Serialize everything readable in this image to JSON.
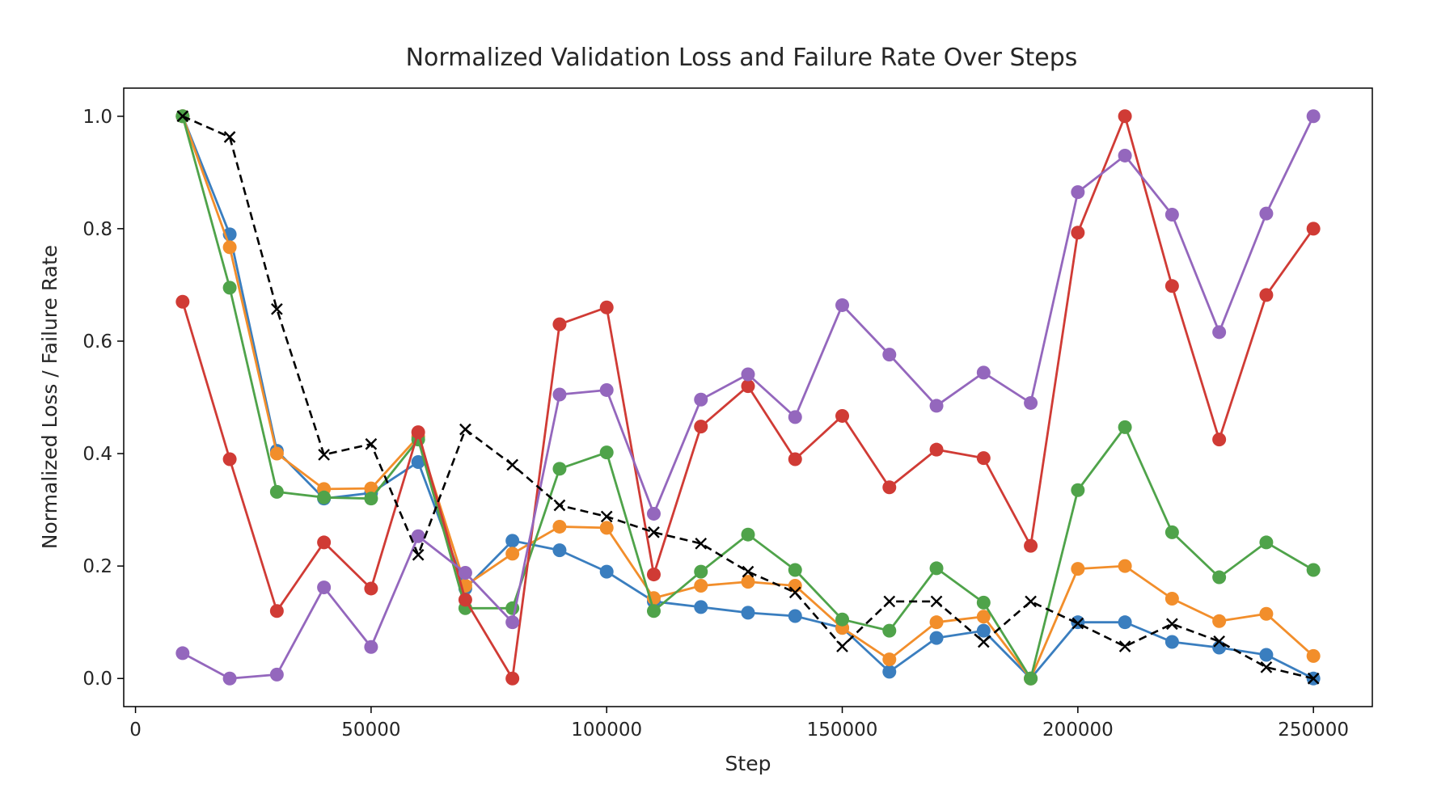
{
  "chart_data": {
    "type": "line",
    "title": "Normalized Validation Loss and Failure Rate Over Steps",
    "xlabel": "Step",
    "ylabel": "Normalized Loss / Failure Rate",
    "xlim": [
      -2500,
      262500
    ],
    "ylim": [
      -0.05,
      1.05
    ],
    "xticks": [
      0,
      50000,
      100000,
      150000,
      200000,
      250000
    ],
    "xtick_labels": [
      "0",
      "50000",
      "100000",
      "150000",
      "200000",
      "250000"
    ],
    "yticks": [
      0.0,
      0.2,
      0.4,
      0.6,
      0.8,
      1.0
    ],
    "ytick_labels": [
      "0.0",
      "0.2",
      "0.4",
      "0.6",
      "0.8",
      "1.0"
    ],
    "grid": false,
    "x": [
      10000,
      20000,
      30000,
      40000,
      50000,
      60000,
      70000,
      80000,
      90000,
      100000,
      110000,
      120000,
      130000,
      140000,
      150000,
      160000,
      170000,
      180000,
      190000,
      200000,
      210000,
      220000,
      230000,
      240000,
      250000
    ],
    "series": [
      {
        "color": "#3a7ebf",
        "style": "solid",
        "marker": "circle",
        "values": [
          1.0,
          0.79,
          0.405,
          0.32,
          0.33,
          0.385,
          0.16,
          0.245,
          0.228,
          0.19,
          0.137,
          0.127,
          0.117,
          0.111,
          0.09,
          0.012,
          0.072,
          0.085,
          0.0,
          0.1,
          0.1,
          0.065,
          0.055,
          0.042,
          0.0
        ]
      },
      {
        "color": "#f28e2b",
        "style": "solid",
        "marker": "circle",
        "values": [
          1.0,
          0.767,
          0.4,
          0.337,
          0.338,
          0.43,
          0.165,
          0.222,
          0.27,
          0.268,
          0.143,
          0.165,
          0.172,
          0.165,
          0.09,
          0.034,
          0.1,
          0.11,
          0.0,
          0.195,
          0.2,
          0.142,
          0.102,
          0.115,
          0.04
        ]
      },
      {
        "color": "#4fa34a",
        "style": "solid",
        "marker": "circle",
        "values": [
          1.0,
          0.695,
          0.332,
          0.322,
          0.32,
          0.425,
          0.125,
          0.125,
          0.373,
          0.402,
          0.12,
          0.19,
          0.256,
          0.193,
          0.105,
          0.085,
          0.196,
          0.135,
          0.0,
          0.335,
          0.447,
          0.26,
          0.18,
          0.242,
          0.193
        ]
      },
      {
        "color": "#d03b35",
        "style": "solid",
        "marker": "circle",
        "values": [
          0.67,
          0.39,
          0.12,
          0.242,
          0.16,
          0.438,
          0.14,
          0.0,
          0.63,
          0.66,
          0.185,
          0.448,
          0.52,
          0.39,
          0.467,
          0.34,
          0.407,
          0.392,
          0.236,
          0.793,
          1.0,
          0.698,
          0.425,
          0.682,
          0.8
        ]
      },
      {
        "color": "#9467bd",
        "style": "solid",
        "marker": "circle",
        "values": [
          0.045,
          0.0,
          0.007,
          0.162,
          0.056,
          0.253,
          0.188,
          0.1,
          0.505,
          0.513,
          0.293,
          0.496,
          0.541,
          0.465,
          0.664,
          0.576,
          0.485,
          0.544,
          0.49,
          0.865,
          0.93,
          0.825,
          0.616,
          0.827,
          1.0
        ]
      },
      {
        "color": "#000000",
        "style": "dashed",
        "marker": "x",
        "values": [
          1.0,
          0.963,
          0.657,
          0.398,
          0.417,
          0.22,
          0.443,
          0.38,
          0.308,
          0.288,
          0.26,
          0.24,
          0.19,
          0.153,
          0.057,
          0.137,
          0.137,
          0.065,
          0.137,
          0.098,
          0.057,
          0.097,
          0.066,
          0.02,
          0.0
        ]
      }
    ]
  }
}
